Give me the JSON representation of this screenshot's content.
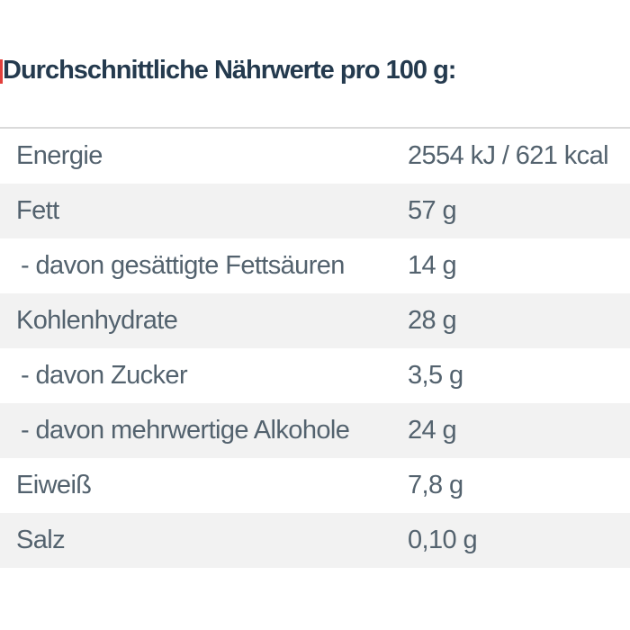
{
  "page": {
    "background": "#ffffff"
  },
  "decor": {
    "left_edge_fragment": "red-glyph-fragment"
  },
  "title": {
    "text": "Durchschnittliche Nährwerte pro 100 g:"
  },
  "table": {
    "unit_basis": "pro 100 g",
    "rows": [
      {
        "label": "Energie",
        "value": "2554 kJ / 621 kcal",
        "indent": false
      },
      {
        "label": "Fett",
        "value": "57 g",
        "indent": false
      },
      {
        "label": "- davon gesättigte Fettsäuren",
        "value": "14 g",
        "indent": true
      },
      {
        "label": "Kohlenhydrate",
        "value": "28 g",
        "indent": false
      },
      {
        "label": "- davon Zucker",
        "value": "3,5 g",
        "indent": true
      },
      {
        "label": "- davon mehrwertige Alkohole",
        "value": "24 g",
        "indent": true
      },
      {
        "label": "Eiweiß",
        "value": "7,8 g",
        "indent": false
      },
      {
        "label": "Salz",
        "value": "0,10 g",
        "indent": false
      }
    ],
    "colors": {
      "title_text": "#243a4e",
      "row_text": "#53626e",
      "stripe_bg": "#f2f2f2",
      "top_border": "#dadada",
      "accent_red": "#e2403c"
    }
  }
}
